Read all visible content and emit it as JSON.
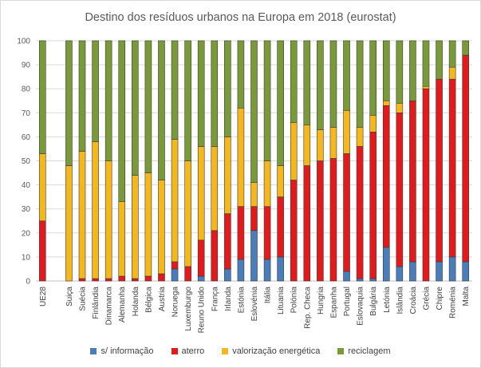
{
  "chart_data": {
    "type": "bar",
    "stacked": true,
    "title": "Destino dos resíduos urbanos na Europa em 2018 (eurostat)",
    "xlabel": "",
    "ylabel": "",
    "ylim": [
      0,
      100
    ],
    "yticks": [
      "0",
      "10",
      "20",
      "30",
      "40",
      "50",
      "60",
      "70",
      "80",
      "90",
      "100"
    ],
    "grid": true,
    "legend_position": "bottom",
    "categories": [
      "UE28",
      "",
      "Suiça",
      "Suécia",
      "Finlândia",
      "Dinamarca",
      "Alemanha",
      "Holanda",
      "Bélgica",
      "Austria",
      "Noruega",
      "Luxemburgo",
      "Reuno Unido",
      "França",
      "Irlanda",
      "Estónia",
      "Eslovénia",
      "Itália",
      "Lituania",
      "Polónia",
      "Rep. Checa",
      "Hungria",
      "Espanha",
      "Portugal",
      "Eslovaquia",
      "Bulgária",
      "Letónia",
      "Islândia",
      "Croácia",
      "Grécia",
      "Chipre",
      "Roménia",
      "Malta"
    ],
    "series": [
      {
        "name": "s/ informação",
        "color": "#4a7ebb",
        "values": [
          0,
          0,
          0,
          0,
          0,
          0,
          0,
          0,
          0,
          0,
          5,
          0,
          2,
          0,
          5,
          9,
          21,
          9,
          10,
          0,
          0,
          0,
          0,
          4,
          1,
          1,
          14,
          6,
          8,
          0,
          8,
          10,
          8
        ]
      },
      {
        "name": "aterro",
        "color": "#e31a1c",
        "values": [
          25,
          0,
          0,
          1,
          1,
          1,
          2,
          1,
          2,
          3,
          3,
          6,
          15,
          21,
          23,
          22,
          10,
          22,
          25,
          42,
          48,
          50,
          51,
          49,
          55,
          61,
          59,
          64,
          67,
          80,
          76,
          74,
          86
        ]
      },
      {
        "name": "valorização energética",
        "color": "#f4b71c",
        "values": [
          28,
          0,
          48,
          53,
          57,
          49,
          31,
          43,
          43,
          39,
          51,
          44,
          39,
          35,
          32,
          41,
          10,
          19,
          13,
          24,
          17,
          13,
          13,
          18,
          8,
          7,
          2,
          4,
          0,
          1,
          0,
          5,
          0
        ]
      },
      {
        "name": "reciclagem",
        "color": "#7a9a3a",
        "values": [
          47,
          0,
          52,
          46,
          42,
          50,
          67,
          56,
          55,
          58,
          41,
          50,
          44,
          44,
          40,
          28,
          59,
          50,
          52,
          34,
          35,
          37,
          36,
          29,
          36,
          31,
          25,
          26,
          25,
          19,
          16,
          11,
          6
        ]
      }
    ]
  }
}
